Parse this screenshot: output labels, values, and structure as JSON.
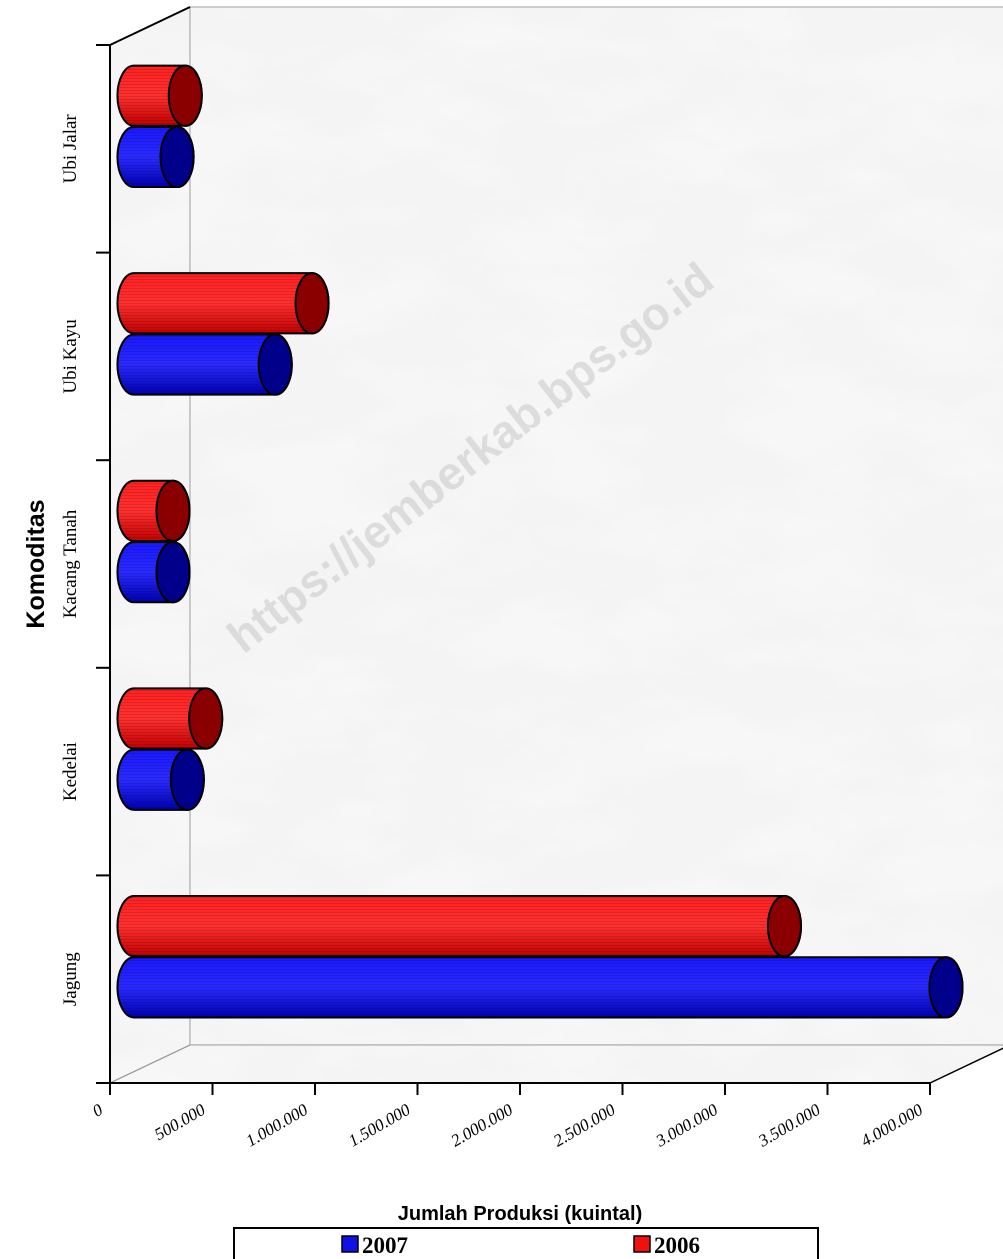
{
  "watermark": "https://jemberkab.bps.go.id",
  "colors": {
    "series_2007": "#1010e8",
    "series_2007_dark": "#00008a",
    "series_2006": "#f01010",
    "series_2006_dark": "#8a0000",
    "marble": "#ececec"
  },
  "chart_data": {
    "type": "bar",
    "orientation": "horizontal",
    "style": "3d-cylinder",
    "categories": [
      "Jagung",
      "Kedelai",
      "Kacang Tanah",
      "Ubi Kayu",
      "Ubi Jalar"
    ],
    "series": [
      {
        "name": "2007",
        "values": [
          4000000,
          290000,
          220000,
          720000,
          240000
        ]
      },
      {
        "name": "2006",
        "values": [
          3210000,
          380000,
          220000,
          900000,
          280000
        ]
      }
    ],
    "xlabel": "Jumlah Produksi (kuintal)",
    "ylabel": "Komoditas",
    "xlim": [
      0,
      4000000
    ],
    "xticks": [
      "0",
      "500.000",
      "1.000.000",
      "1.500.000",
      "2.000.000",
      "2.500.000",
      "3.000.000",
      "3.500.000",
      "4.000.000"
    ],
    "legend": {
      "position": "bottom",
      "entries": [
        "2007",
        "2006"
      ]
    },
    "grid": false
  }
}
